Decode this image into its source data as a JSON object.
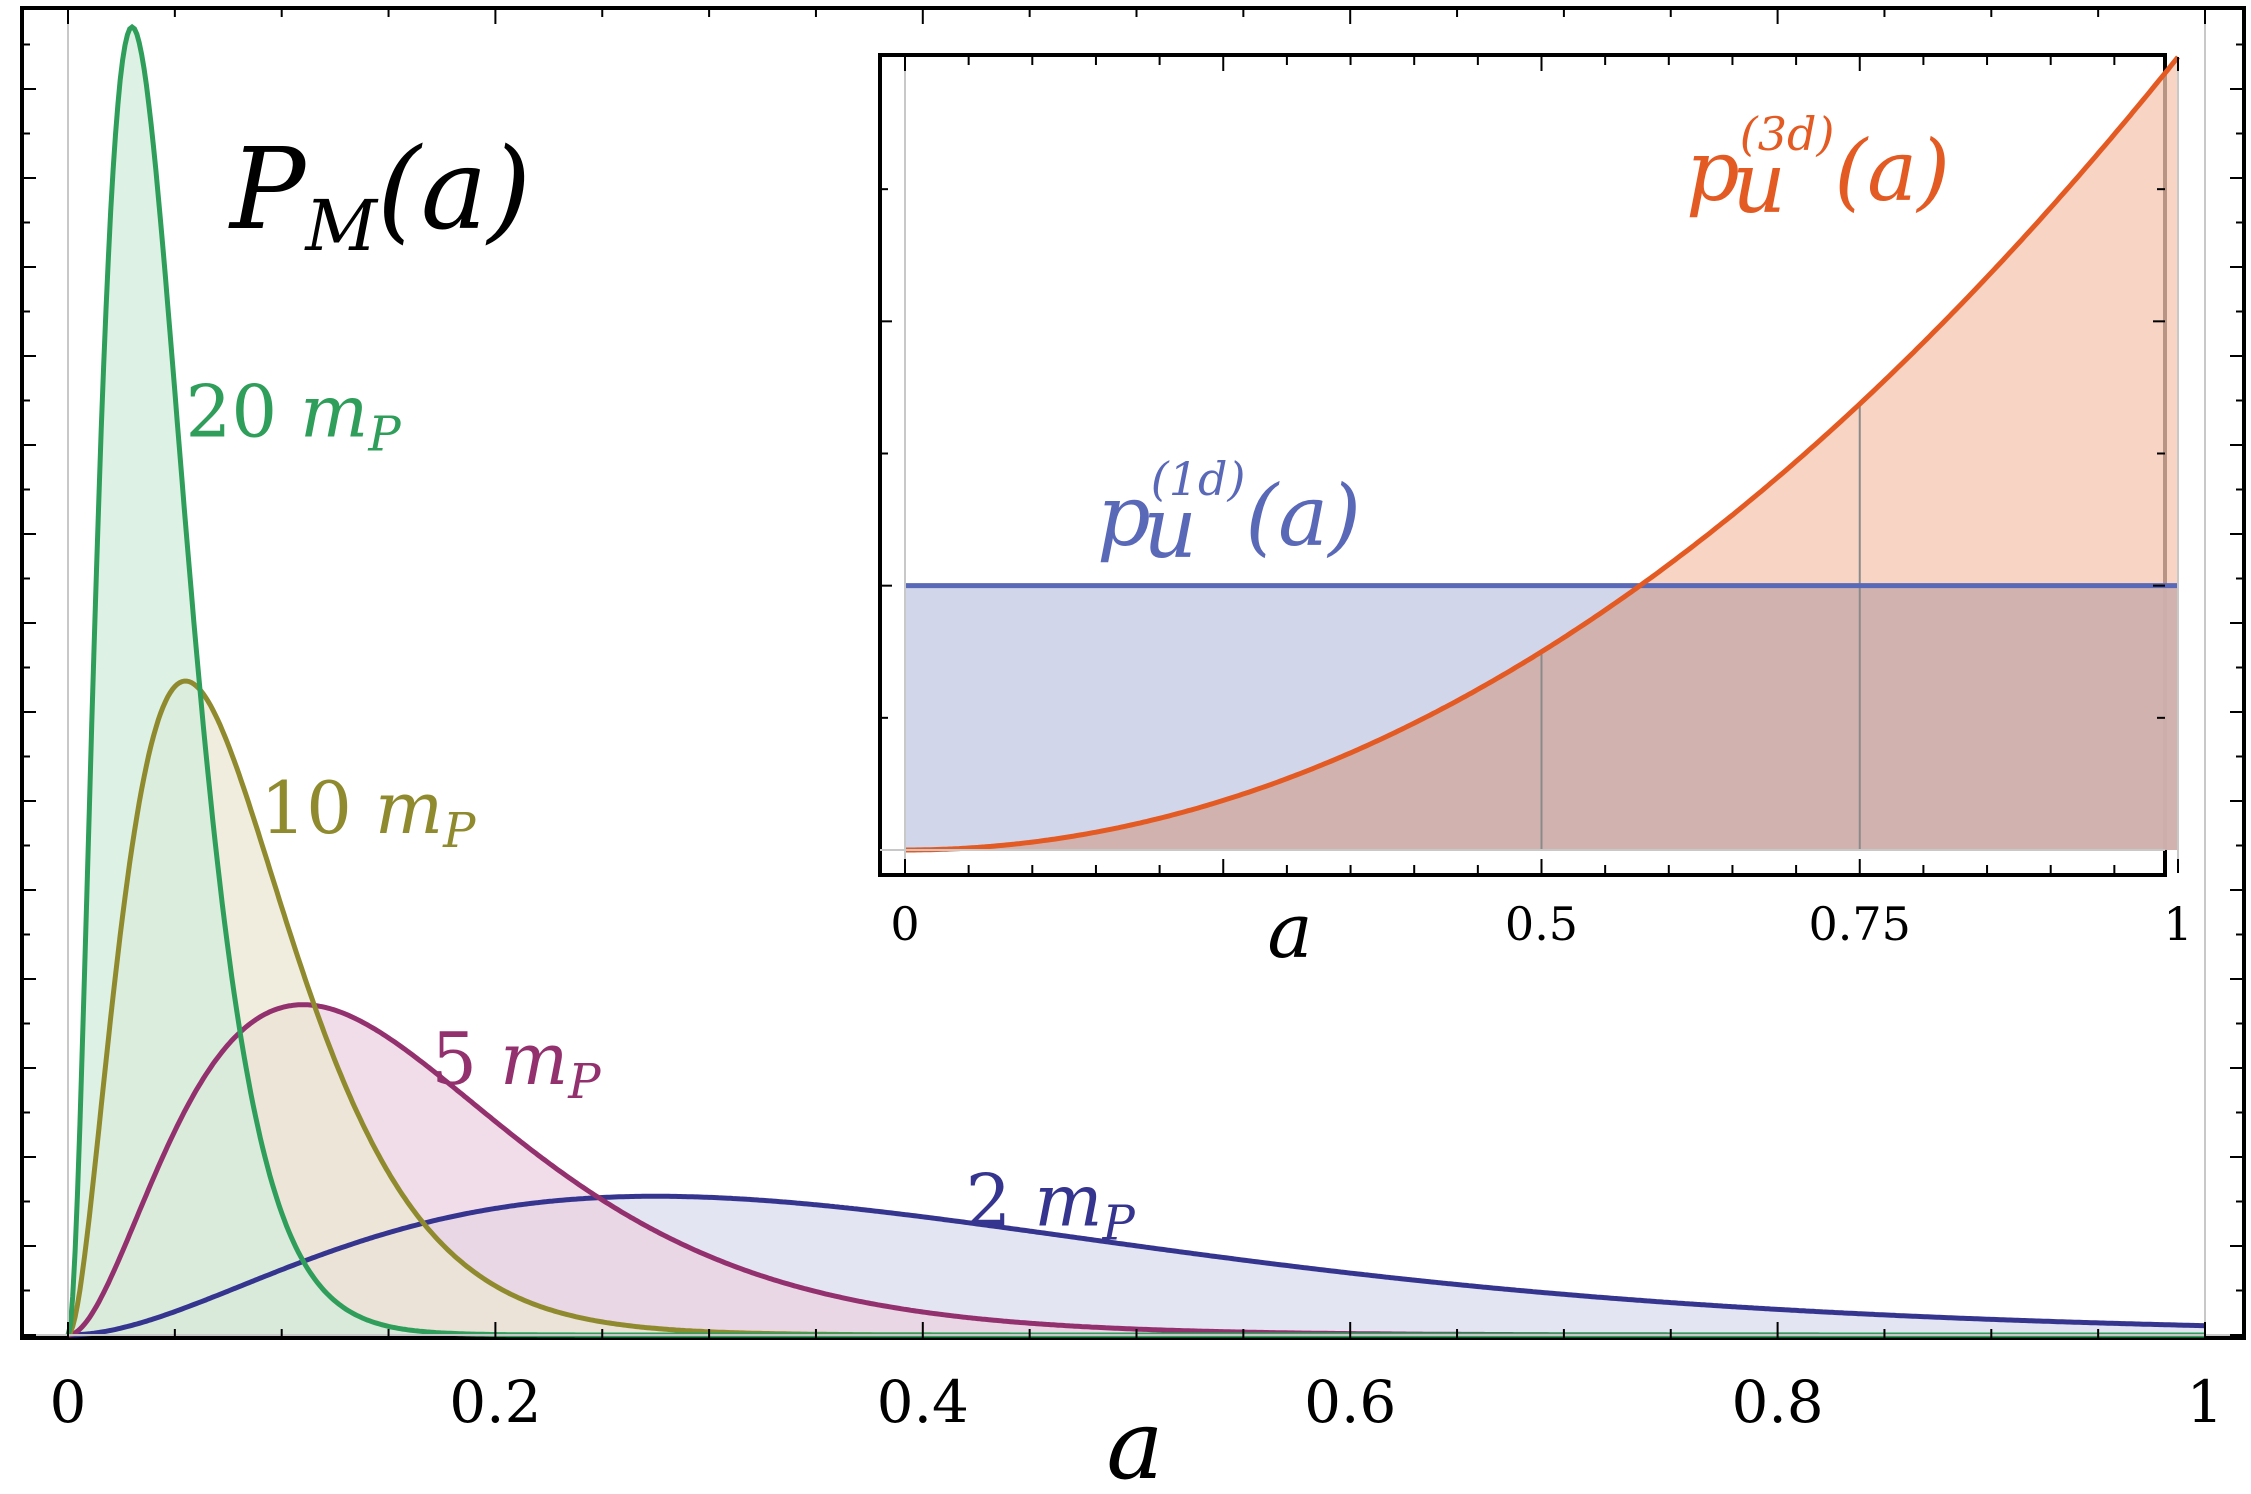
{
  "chart_data": [
    {
      "type": "area",
      "title": "P_M(a)",
      "title_parts": {
        "main": "P",
        "sub": "M",
        "arg": "(a)"
      },
      "xlabel": "a",
      "ylabel": "",
      "xlim": [
        0,
        1
      ],
      "ylim": [
        0,
        9.9
      ],
      "xticks": [
        "0",
        "0.2",
        "0.4",
        "0.6",
        "0.8",
        "1"
      ],
      "xtick_values": [
        0,
        0.2,
        0.4,
        0.6,
        0.8,
        1
      ],
      "grid": false,
      "legend": "none",
      "series": [
        {
          "name": "20 m_P",
          "label_number": "20",
          "label_unit": "m",
          "label_sub": "P",
          "mode_x": 0.03,
          "peak_y": 9.9,
          "k": 70,
          "color": "#2e9e5a",
          "fill": "#d3ecdc"
        },
        {
          "name": "10 m_P",
          "label_number": "10",
          "label_unit": "m",
          "label_sub": "P",
          "mode_x": 0.055,
          "peak_y": 4.95,
          "k": 35,
          "color": "#8f8a2e",
          "fill": "#ece7d3"
        },
        {
          "name": "5 m_P",
          "label_number": "5",
          "label_unit": "m",
          "label_sub": "P",
          "mode_x": 0.11,
          "peak_y": 2.5,
          "k": 18,
          "color": "#93306e",
          "fill": "#ecd2e2"
        },
        {
          "name": "2 m_P",
          "label_number": "2",
          "label_unit": "m",
          "label_sub": "P",
          "mode_x": 0.275,
          "peak_y": 1.05,
          "k": 7.3,
          "color": "#35348f",
          "fill": "#dadcee"
        }
      ]
    },
    {
      "type": "area",
      "title": "",
      "xlabel": "a",
      "xlim": [
        0,
        1
      ],
      "ylim": [
        0,
        3
      ],
      "xticks": [
        "0",
        "0.5",
        "0.75",
        "1"
      ],
      "xtick_values": [
        0,
        0.5,
        0.75,
        1
      ],
      "reference_lines_x": [
        0.5,
        0.75
      ],
      "grid": false,
      "legend": "none",
      "series": [
        {
          "name": "p_u^(1d)(a)",
          "label_main": "p",
          "label_sub": "u",
          "label_sup": "(1d)",
          "label_arg": "(a)",
          "formula": "1",
          "color": "#5a68b8",
          "fill": "#cdd1e8"
        },
        {
          "name": "p_u^(3d)(a)",
          "label_main": "p",
          "label_sub": "u",
          "label_sup": "(3d)",
          "label_arg": "(a)",
          "formula": "3a^2",
          "color": "#e35a22",
          "fill": "#f5c5b2"
        }
      ]
    }
  ]
}
